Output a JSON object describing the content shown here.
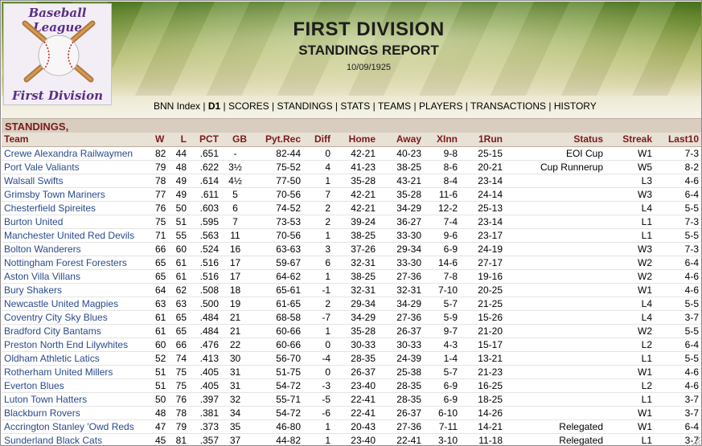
{
  "logo": {
    "top_text": "Baseball League",
    "bottom_text": "First Division",
    "icon": "baseball-bats-icon"
  },
  "header": {
    "title": "FIRST DIVISION",
    "subtitle": "STANDINGS REPORT",
    "date": "10/09/1925"
  },
  "nav": {
    "items": [
      {
        "label": "BNN Index",
        "current": false
      },
      {
        "label": "D1",
        "current": true
      },
      {
        "label": "SCORES",
        "current": false
      },
      {
        "label": "STANDINGS",
        "current": false
      },
      {
        "label": "STATS",
        "current": false
      },
      {
        "label": "TEAMS",
        "current": false
      },
      {
        "label": "PLAYERS",
        "current": false
      },
      {
        "label": "TRANSACTIONS",
        "current": false
      },
      {
        "label": "HISTORY",
        "current": false
      }
    ],
    "separator": " | "
  },
  "section": {
    "title": "STANDINGS,"
  },
  "columns": [
    "Team",
    "W",
    "L",
    "PCT",
    "GB",
    "Pyt.Rec",
    "Diff",
    "Home",
    "Away",
    "XInn",
    "1Run",
    "Status",
    "Streak",
    "Last10"
  ],
  "rows": [
    [
      "Crewe Alexandra Railwaymen",
      "82",
      "44",
      ".651",
      "-",
      "82-44",
      "0",
      "42-21",
      "40-23",
      "9-8",
      "25-15",
      "EOI Cup",
      "W1",
      "7-3"
    ],
    [
      "Port Vale Valiants",
      "79",
      "48",
      ".622",
      "3½",
      "75-52",
      "4",
      "41-23",
      "38-25",
      "8-6",
      "20-21",
      "Cup Runnerup",
      "W5",
      "8-2"
    ],
    [
      "Walsall Swifts",
      "78",
      "49",
      ".614",
      "4½",
      "77-50",
      "1",
      "35-28",
      "43-21",
      "8-4",
      "23-14",
      "",
      "L3",
      "4-6"
    ],
    [
      "Grimsby Town Mariners",
      "77",
      "49",
      ".611",
      "5",
      "70-56",
      "7",
      "42-21",
      "35-28",
      "11-6",
      "24-14",
      "",
      "W3",
      "6-4"
    ],
    [
      "Chesterfield Spireites",
      "76",
      "50",
      ".603",
      "6",
      "74-52",
      "2",
      "42-21",
      "34-29",
      "12-2",
      "25-13",
      "",
      "L4",
      "5-5"
    ],
    [
      "Burton United",
      "75",
      "51",
      ".595",
      "7",
      "73-53",
      "2",
      "39-24",
      "36-27",
      "7-4",
      "23-14",
      "",
      "L1",
      "7-3"
    ],
    [
      "Manchester United Red Devils",
      "71",
      "55",
      ".563",
      "11",
      "70-56",
      "1",
      "38-25",
      "33-30",
      "9-6",
      "23-17",
      "",
      "L1",
      "5-5"
    ],
    [
      "Bolton Wanderers",
      "66",
      "60",
      ".524",
      "16",
      "63-63",
      "3",
      "37-26",
      "29-34",
      "6-9",
      "24-19",
      "",
      "W3",
      "7-3"
    ],
    [
      "Nottingham Forest Foresters",
      "65",
      "61",
      ".516",
      "17",
      "59-67",
      "6",
      "32-31",
      "33-30",
      "14-6",
      "27-17",
      "",
      "W2",
      "6-4"
    ],
    [
      "Aston Villa Villans",
      "65",
      "61",
      ".516",
      "17",
      "64-62",
      "1",
      "38-25",
      "27-36",
      "7-8",
      "19-16",
      "",
      "W2",
      "4-6"
    ],
    [
      "Bury Shakers",
      "64",
      "62",
      ".508",
      "18",
      "65-61",
      "-1",
      "32-31",
      "32-31",
      "7-10",
      "20-25",
      "",
      "W1",
      "4-6"
    ],
    [
      "Newcastle United Magpies",
      "63",
      "63",
      ".500",
      "19",
      "61-65",
      "2",
      "29-34",
      "34-29",
      "5-7",
      "21-25",
      "",
      "L4",
      "5-5"
    ],
    [
      "Coventry City Sky Blues",
      "61",
      "65",
      ".484",
      "21",
      "68-58",
      "-7",
      "34-29",
      "27-36",
      "5-9",
      "15-26",
      "",
      "L4",
      "3-7"
    ],
    [
      "Bradford City Bantams",
      "61",
      "65",
      ".484",
      "21",
      "60-66",
      "1",
      "35-28",
      "26-37",
      "9-7",
      "21-20",
      "",
      "W2",
      "5-5"
    ],
    [
      "Preston North End Lilywhites",
      "60",
      "66",
      ".476",
      "22",
      "60-66",
      "0",
      "30-33",
      "30-33",
      "4-3",
      "15-17",
      "",
      "L2",
      "6-4"
    ],
    [
      "Oldham Athletic Latics",
      "52",
      "74",
      ".413",
      "30",
      "56-70",
      "-4",
      "28-35",
      "24-39",
      "1-4",
      "13-21",
      "",
      "L1",
      "5-5"
    ],
    [
      "Rotherham United Millers",
      "51",
      "75",
      ".405",
      "31",
      "51-75",
      "0",
      "26-37",
      "25-38",
      "5-7",
      "21-23",
      "",
      "W1",
      "4-6"
    ],
    [
      "Everton Blues",
      "51",
      "75",
      ".405",
      "31",
      "54-72",
      "-3",
      "23-40",
      "28-35",
      "6-9",
      "16-25",
      "",
      "L2",
      "4-6"
    ],
    [
      "Luton Town Hatters",
      "50",
      "76",
      ".397",
      "32",
      "55-71",
      "-5",
      "22-41",
      "28-35",
      "6-9",
      "18-25",
      "",
      "L1",
      "3-7"
    ],
    [
      "Blackburn Rovers",
      "48",
      "78",
      ".381",
      "34",
      "54-72",
      "-6",
      "22-41",
      "26-37",
      "6-10",
      "14-26",
      "",
      "W1",
      "3-7"
    ],
    [
      "Accrington Stanley 'Owd Reds",
      "47",
      "79",
      ".373",
      "35",
      "46-80",
      "1",
      "20-43",
      "27-36",
      "7-11",
      "14-21",
      "Relegated",
      "W1",
      "6-4"
    ],
    [
      "Sunderland Black Cats",
      "45",
      "81",
      ".357",
      "37",
      "44-82",
      "1",
      "23-40",
      "22-41",
      "3-10",
      "11-18",
      "Relegated",
      "L1",
      "3-7"
    ]
  ]
}
